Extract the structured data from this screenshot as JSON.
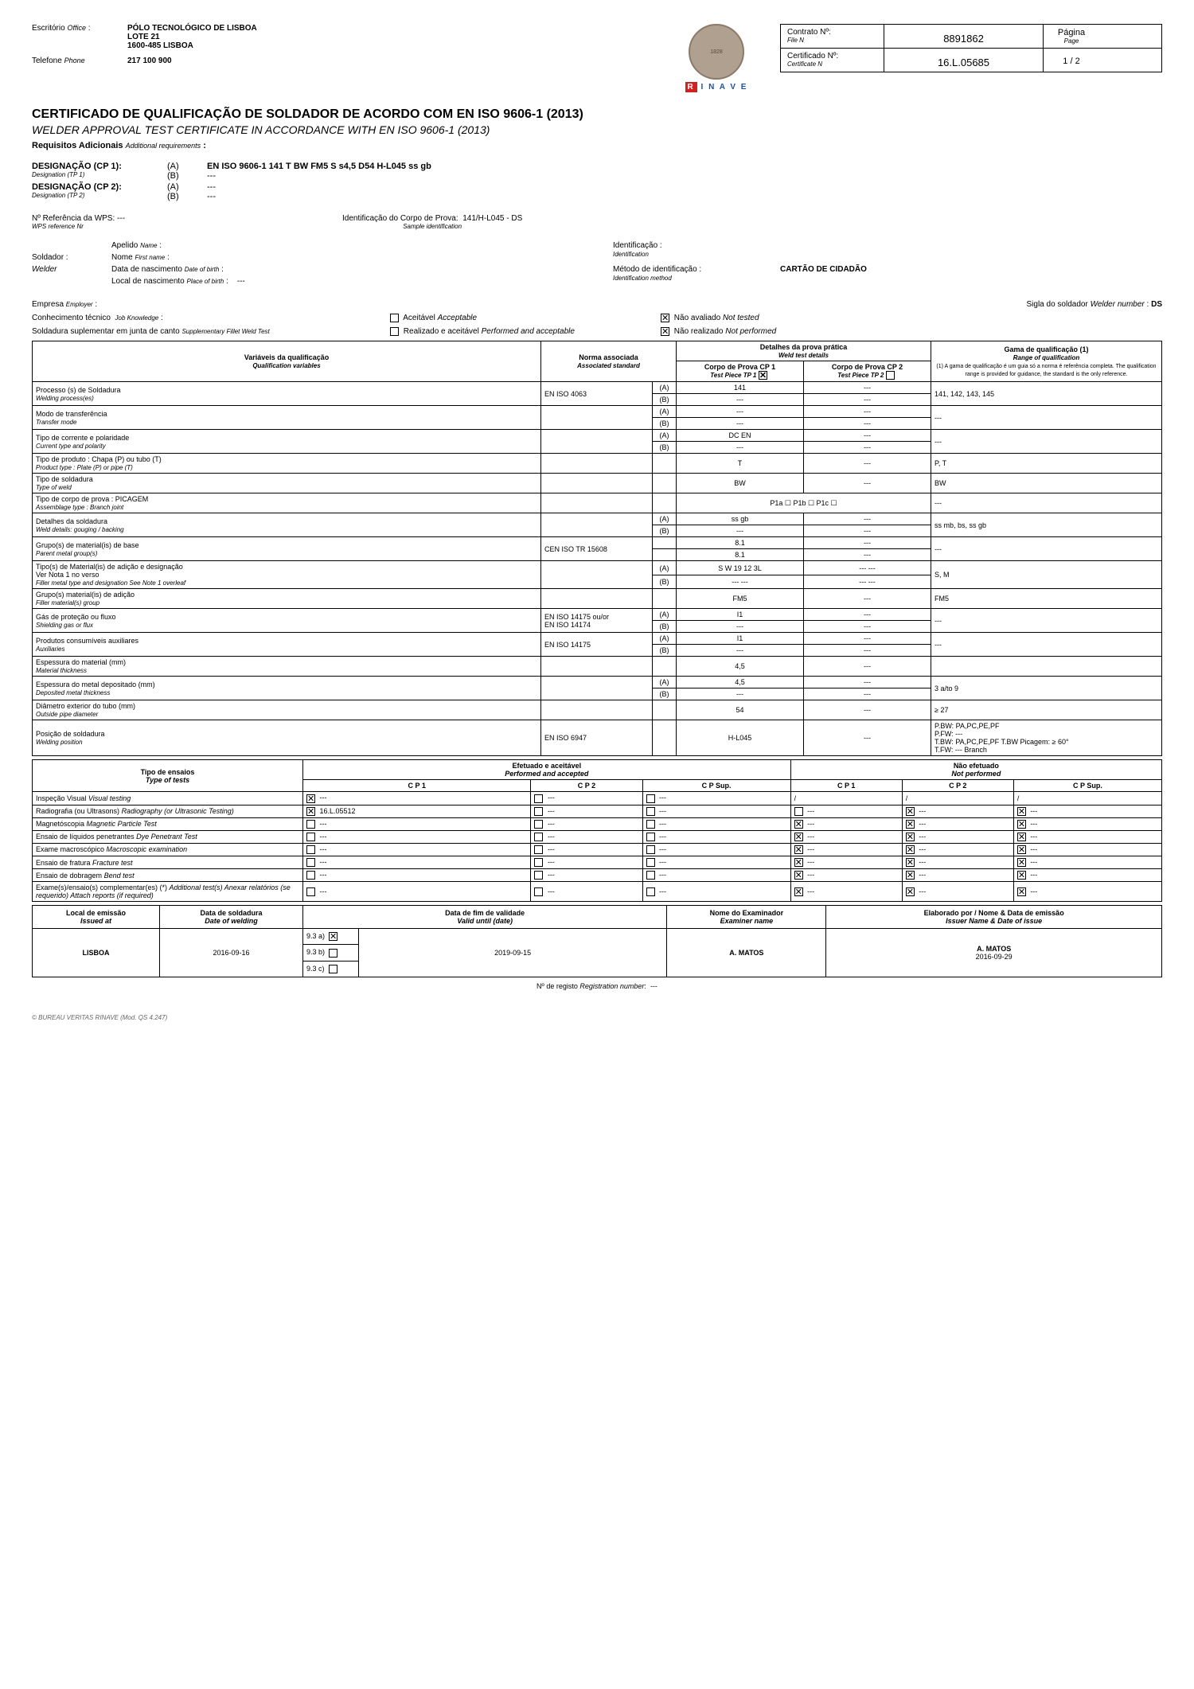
{
  "header": {
    "office_label": "Escritório",
    "office_label_en": "Office",
    "office_value": "PÓLO TECNOLÓGICO DE LISBOA\nLOTE 21\n1600-485 LISBOA",
    "phone_label": "Telefone",
    "phone_label_en": "Phone",
    "phone_value": "217 100 900",
    "brand_top": "BUREAU VERITAS",
    "brand_year": "1828",
    "brand_sub": "RINAVE",
    "contract_label": "Contrato Nº:",
    "contract_label_en": "File N",
    "contract_value": "8891862",
    "cert_label": "Certificado Nº:",
    "cert_label_en": "Certificate N",
    "cert_value": "16.L.05685",
    "page_label": "Página",
    "page_label_en": "Page",
    "page_value": "1 / 2"
  },
  "title": {
    "main": "CERTIFICADO DE QUALIFICAÇÃO DE SOLDADOR DE ACORDO COM EN ISO 9606-1 (2013)",
    "sub": "WELDER APPROVAL TEST CERTIFICATE IN ACCORDANCE WITH EN ISO 9606-1 (2013)",
    "req": "Requisitos Adicionais",
    "req_en": "Additional requirements",
    "req_val": ":"
  },
  "designation": {
    "cp1_label": "DESIGNAÇÃO (CP 1):",
    "cp1_label_en": "Designation (TP 1)",
    "cp1_a": "EN ISO 9606-1 141 T BW FM5 S s4,5 D54 H-L045 ss gb",
    "cp1_b": "---",
    "cp2_label": "DESIGNAÇÃO (CP 2):",
    "cp2_label_en": "Designation (TP 2)",
    "cp2_a": "---",
    "cp2_b": "---"
  },
  "refs": {
    "wps_label": "Nº Referência da WPS:",
    "wps_label_en": "WPS reference Nr",
    "wps_val": "---",
    "sample_label": "Identificação do Corpo de Prova:",
    "sample_label_en": "Sample identification",
    "sample_val": "141/H-L045 - DS"
  },
  "welder": {
    "section_label": "Soldador :",
    "section_label_en": "Welder",
    "surname_label": "Apelido",
    "surname_label_en": "Name",
    "surname_val": "",
    "firstname_label": "Nome",
    "firstname_label_en": "First name",
    "firstname_val": "",
    "dob_label": "Data de nascimento",
    "dob_label_en": "Date of birth",
    "dob_val": "",
    "pob_label": "Local de nascimento",
    "pob_label_en": "Place of birth",
    "pob_val": "---",
    "ident_label": "Identificação :",
    "ident_label_en": "Identification",
    "ident_val": "",
    "method_label": "Método de identificação :",
    "method_label_en": "Identification method",
    "method_val": "CARTÃO DE CIDADÃO"
  },
  "employer": {
    "label": "Empresa",
    "label_en": "Employer",
    "val": "",
    "sigla_label": "Sigla do soldador",
    "sigla_label_en": "Welder number",
    "sigla_val": "DS"
  },
  "knowledge": {
    "label": "Conhecimento técnico",
    "label_en": "Job Knowledge",
    "opt1": "Aceitável",
    "opt1_en": "Acceptable",
    "opt1_checked": false,
    "opt2": "Não avaliado",
    "opt2_en": "Not tested",
    "opt2_checked": true
  },
  "supplementary": {
    "label": "Soldadura suplementar em junta de canto",
    "label_en": "Supplementary Fillet Weld Test",
    "opt1": "Realizado e aceitável",
    "opt1_en": "Performed and acceptable",
    "opt1_checked": false,
    "opt2": "Não realizado",
    "opt2_en": "Not performed",
    "opt2_checked": true
  },
  "main_table": {
    "hdr_var": "Variáveis da qualificação",
    "hdr_var_en": "Qualification variables",
    "hdr_norm": "Norma associada",
    "hdr_norm_en": "Associated standard",
    "hdr_details": "Detalhes da prova prática",
    "hdr_details_en": "Weld test details",
    "hdr_cp1": "Corpo de Prova CP 1",
    "hdr_cp1_en": "Test Piece TP 1",
    "cp1_checked": true,
    "hdr_cp2": "Corpo de Prova CP 2",
    "hdr_cp2_en": "Test Piece TP 2",
    "cp2_checked": false,
    "hdr_range": "Gama de qualificação (1)",
    "hdr_range_en": "Range of qualification",
    "hdr_range_note": "(1) A gama de qualificação é um guia só a norma é referência completa. The qualification range is provided for guidance, the standard is the only reference.",
    "rows": [
      {
        "var": "Processo (s) de Soldadura",
        "var_en": "Welding process(es)",
        "norm": "EN ISO 4063",
        "ab": [
          "(A)",
          "(B)"
        ],
        "cp1": [
          "141",
          "---"
        ],
        "cp2": [
          "---",
          "---"
        ],
        "range": "141, 142, 143, 145"
      },
      {
        "var": "Modo de transferência",
        "var_en": "Transfer mode",
        "norm": "",
        "ab": [
          "(A)",
          "(B)"
        ],
        "cp1": [
          "---",
          "---"
        ],
        "cp2": [
          "---",
          "---"
        ],
        "range": "---"
      },
      {
        "var": "Tipo de corrente e polaridade",
        "var_en": "Current type and polarity",
        "norm": "",
        "ab": [
          "(A)",
          "(B)"
        ],
        "cp1": [
          "DC EN",
          "---"
        ],
        "cp2": [
          "---",
          "---"
        ],
        "range": "---"
      },
      {
        "var": "Tipo de produto : Chapa (P) ou tubo (T)",
        "var_en": "Product type : Plate (P) or pipe (T)",
        "norm": "",
        "ab": [
          ""
        ],
        "cp1": [
          "T"
        ],
        "cp2": [
          "---"
        ],
        "range": "P, T"
      },
      {
        "var": "Tipo de soldadura",
        "var_en": "Type of weld",
        "norm": "",
        "ab": [
          ""
        ],
        "cp1": [
          "BW"
        ],
        "cp2": [
          "---"
        ],
        "range": "BW"
      },
      {
        "var": "Tipo de corpo de prova : PICAGEM",
        "var_en": "Assemblage type : Branch joint",
        "norm": "",
        "ab": [
          ""
        ],
        "cp1": [
          "P1a ☐      P1b ☐      P1c ☐"
        ],
        "cp2": [
          ""
        ],
        "range": "---",
        "cp_merge": true
      },
      {
        "var": "Detalhes da soldadura",
        "var_en": "Weld details: gouging / backing",
        "norm": "",
        "ab": [
          "(A)",
          "(B)"
        ],
        "cp1": [
          "ss gb",
          "---"
        ],
        "cp2": [
          "---",
          "---"
        ],
        "range": "ss mb, bs, ss gb"
      },
      {
        "var": "Grupo(s) de material(is) de base",
        "var_en": "Parent metal group(s)",
        "norm": "CEN ISO TR 15608",
        "ab": [
          "",
          ""
        ],
        "cp1": [
          "8.1",
          "8.1"
        ],
        "cp2": [
          "---",
          "---"
        ],
        "range": "---"
      },
      {
        "var": "Tipo(s) de Material(is) de adição e designação\nVer Nota 1 no verso",
        "var_en": "Filler metal type and designation See Note 1 overleaf",
        "norm": "",
        "ab": [
          "(A)",
          "(B)"
        ],
        "cp1": [
          "S    W 19 12 3L",
          "---    ---"
        ],
        "cp2": [
          "---    ---",
          "---    ---"
        ],
        "range": "S, M"
      },
      {
        "var": "Grupo(s) material(is) de adição",
        "var_en": "Filler material(s) group",
        "norm": "",
        "ab": [
          ""
        ],
        "cp1": [
          "FM5"
        ],
        "cp2": [
          "---"
        ],
        "range": "FM5"
      },
      {
        "var": "Gás de proteção ou fluxo",
        "var_en": "Shielding gas or flux",
        "norm": "EN ISO 14175 ou/or\nEN ISO 14174",
        "ab": [
          "(A)",
          "(B)"
        ],
        "cp1": [
          "I1",
          "---"
        ],
        "cp2": [
          "---",
          "---"
        ],
        "range": "---"
      },
      {
        "var": "Produtos consumíveis auxiliares",
        "var_en": "Auxiliaries",
        "norm": "EN ISO 14175",
        "ab": [
          "(A)",
          "(B)"
        ],
        "cp1": [
          "I1",
          "---"
        ],
        "cp2": [
          "---",
          "---"
        ],
        "range": "---"
      },
      {
        "var": "Espessura do material (mm)",
        "var_en": "Material thickness",
        "norm": "",
        "ab": [
          ""
        ],
        "cp1": [
          "4,5"
        ],
        "cp2": [
          "---"
        ],
        "range": ""
      },
      {
        "var": "Espessura do metal depositado (mm)",
        "var_en": "Deposited metal thickness",
        "norm": "",
        "ab": [
          "(A)",
          "(B)"
        ],
        "cp1": [
          "4,5",
          "---"
        ],
        "cp2": [
          "---",
          "---"
        ],
        "range": "3 a/to 9"
      },
      {
        "var": "Diâmetro exterior do tubo (mm)",
        "var_en": "Outside pipe diameter",
        "norm": "",
        "ab": [
          ""
        ],
        "cp1": [
          "54"
        ],
        "cp2": [
          "---"
        ],
        "range": "≥ 27"
      },
      {
        "var": "Posição de soldadura",
        "var_en": "Welding position",
        "norm": "EN ISO 6947",
        "ab": [
          ""
        ],
        "cp1": [
          "H-L045"
        ],
        "cp2": [
          "---"
        ],
        "range": "P.BW:  PA,PC,PE,PF\nP.FW:  ---\nT.BW:  PA,PC,PE,PF      T.BW Picagem:  ≥ 60°\nT.FW:  ---                          Branch"
      }
    ]
  },
  "tests_table": {
    "hdr_type": "Tipo de ensaios",
    "hdr_type_en": "Type of tests",
    "hdr_done": "Efetuado e aceitável",
    "hdr_done_en": "Performed and accepted",
    "hdr_not": "Não efetuado",
    "hdr_not_en": "Not performed",
    "sub_cols": [
      "C P 1",
      "C P 2",
      "C P Sup.",
      "C P 1",
      "C P 2",
      "C P Sup."
    ],
    "rows": [
      {
        "label": "Inspeção Visual",
        "label_en": "Visual testing",
        "cells": [
          "x:---",
          "o:---",
          "o:---",
          "/",
          "/",
          "/"
        ]
      },
      {
        "label": "Radiografia (ou Ultrasons)",
        "label_en": "Radiography (or Ultrasonic Testing)",
        "cells": [
          "x:16.L.05512",
          "o:---",
          "o:---",
          "o:---",
          "x:---",
          "x:---"
        ]
      },
      {
        "label": "Magnetóscopia",
        "label_en": "Magnetic Particle Test",
        "cells": [
          "o:---",
          "o:---",
          "o:---",
          "x:---",
          "x:---",
          "x:---"
        ]
      },
      {
        "label": "Ensaio de líquidos penetrantes",
        "label_en": "Dye Penetrant Test",
        "cells": [
          "o:---",
          "o:---",
          "o:---",
          "x:---",
          "x:---",
          "x:---"
        ]
      },
      {
        "label": "Exame macroscópico",
        "label_en": "Macroscopic examination",
        "cells": [
          "o:---",
          "o:---",
          "o:---",
          "x:---",
          "x:---",
          "x:---"
        ]
      },
      {
        "label": "Ensaio de fratura",
        "label_en": "Fracture test",
        "cells": [
          "o:---",
          "o:---",
          "o:---",
          "x:---",
          "x:---",
          "x:---"
        ]
      },
      {
        "label": "Ensaio de dobragem",
        "label_en": "Bend test",
        "cells": [
          "o:---",
          "o:---",
          "o:---",
          "x:---",
          "x:---",
          "x:---"
        ]
      },
      {
        "label": "Exame(s)/ensaio(s) complementar(es) (*)",
        "label_en": "Additional test(s) Anexar relatórios (se requerido) Attach reports (if required)",
        "cells": [
          "o:---",
          "o:---",
          "o:---",
          "x:---",
          "x:---",
          "x:---"
        ]
      }
    ]
  },
  "footer": {
    "issue_label": "Local de emissão",
    "issue_label_en": "Issued at",
    "issue_val": "LISBOA",
    "weld_date_label": "Data de soldadura",
    "weld_date_label_en": "Date of welding",
    "weld_date_val": "2016-09-16",
    "valid_label": "Data de fim de validade",
    "valid_label_en": "Valid until (date)",
    "valid_val": "2019-09-15",
    "valid_opts": [
      {
        "k": "9.3 a)",
        "c": true
      },
      {
        "k": "9.3 b)",
        "c": false
      },
      {
        "k": "9.3 c)",
        "c": false
      }
    ],
    "examiner_label": "Nome do Examinador",
    "examiner_label_en": "Examiner name",
    "examiner_val": "A. MATOS",
    "issued_label": "Elaborado por / Nome & Data de emissão",
    "issued_label_en": "Issuer Name & Date of issue",
    "issued_name": "A. MATOS",
    "issued_date": "2016-09-29",
    "reg_label": "Nº de registo",
    "reg_label_en": "Registration number",
    "reg_val": "---",
    "copyright": "© BUREAU VERITAS RINAVE (Mod. QS 4.247)"
  }
}
